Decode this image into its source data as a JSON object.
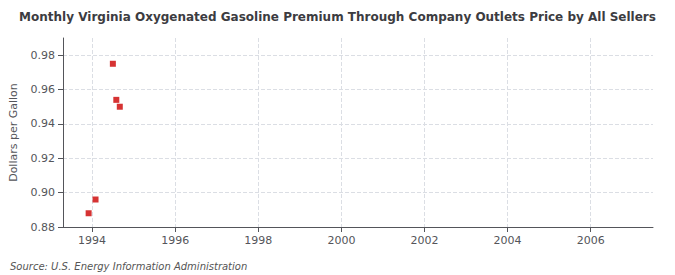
{
  "chart_data": {
    "type": "scatter",
    "title": "Monthly Virginia Oxygenated Gasoline Premium Through Company Outlets Price by All Sellers",
    "ylabel": "Dollars per Gallon",
    "source": "Source: U.S. Energy Information Administration",
    "x": [
      1993.917,
      1994.083,
      1994.5,
      1994.583,
      1994.667
    ],
    "values": [
      0.888,
      0.896,
      0.975,
      0.954,
      0.95
    ],
    "color": "#cc0000",
    "marker": "square",
    "xlim": [
      1993.3,
      2007.5
    ],
    "ylim": [
      0.88,
      0.99
    ],
    "xticks": [
      1994,
      1996,
      1998,
      2000,
      2002,
      2004,
      2006
    ],
    "yticks": [
      0.88,
      {
        "value": 0.9,
        "label": "0.90"
      },
      0.92,
      0.94,
      0.96,
      0.98
    ],
    "grid": true
  }
}
